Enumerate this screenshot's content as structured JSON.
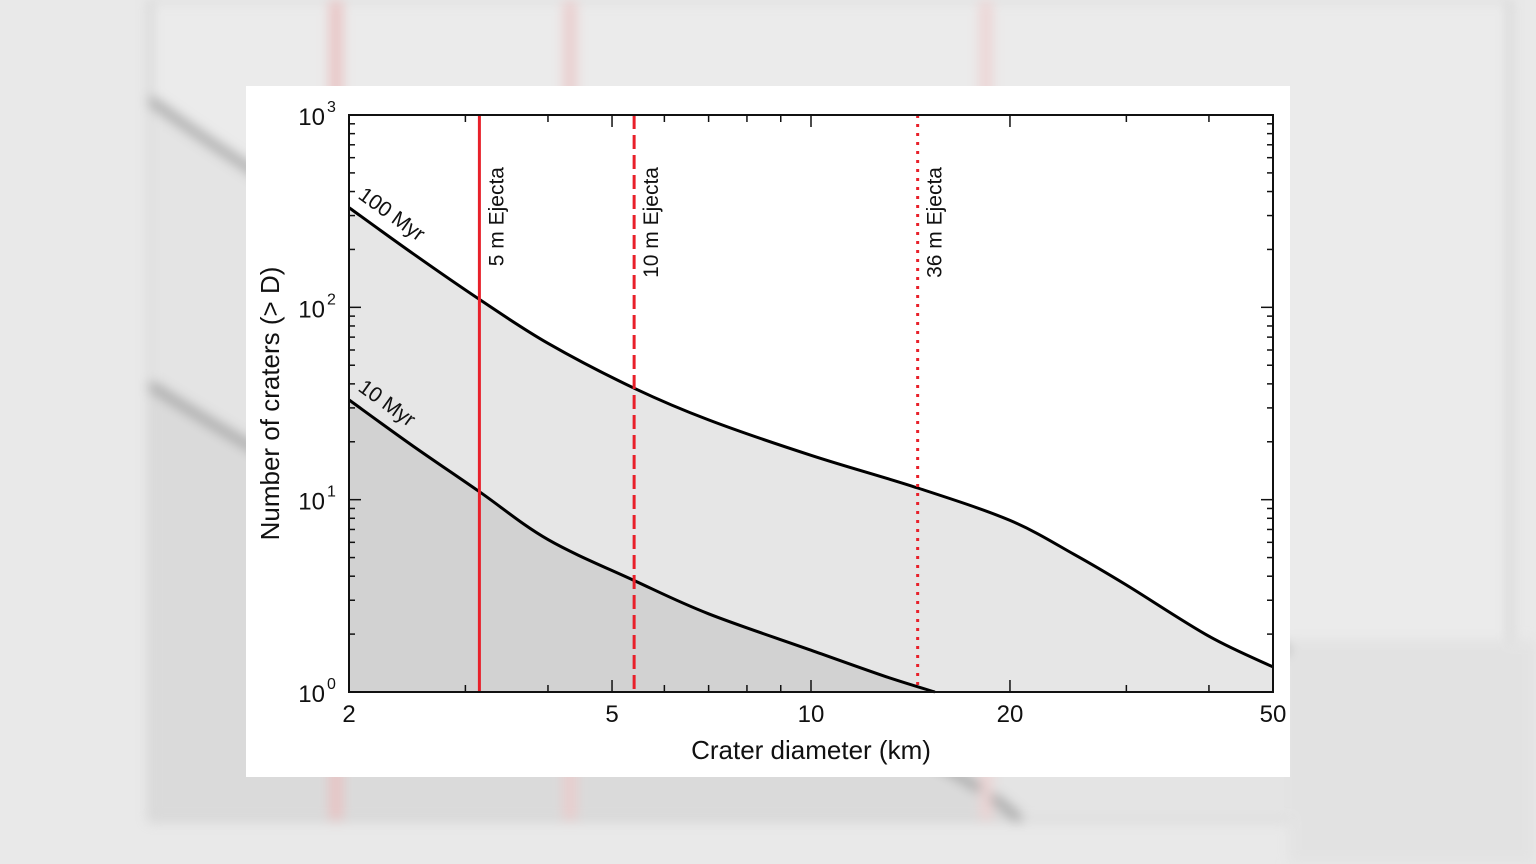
{
  "chart_data": {
    "type": "area",
    "xlabel": "Crater diameter (km)",
    "ylabel": "Number of craters (> D)",
    "xscale": "log",
    "yscale": "log",
    "xlim": [
      2,
      50
    ],
    "ylim": [
      1,
      1000
    ],
    "xticks": [
      2,
      5,
      10,
      20,
      50
    ],
    "xtick_labels": [
      "2",
      "5",
      "10",
      "20",
      "50"
    ],
    "yticks": [
      1,
      10,
      100,
      1000
    ],
    "ytick_labels": [
      {
        "base": "10",
        "exp": "0"
      },
      {
        "base": "10",
        "exp": "1"
      },
      {
        "base": "10",
        "exp": "2"
      },
      {
        "base": "10",
        "exp": "3"
      }
    ],
    "series": [
      {
        "name": "100 Myr",
        "color": "#000000",
        "fill": "#e6e6e6",
        "points": [
          [
            2,
            330
          ],
          [
            2.5,
            190
          ],
          [
            3.15,
            110
          ],
          [
            4,
            65
          ],
          [
            5.4,
            38
          ],
          [
            7,
            26
          ],
          [
            10,
            17
          ],
          [
            14.5,
            11.5
          ],
          [
            20,
            7.8
          ],
          [
            25,
            5.2
          ],
          [
            30,
            3.6
          ],
          [
            40,
            1.95
          ],
          [
            50,
            1.35
          ]
        ]
      },
      {
        "name": "10 Myr",
        "color": "#000000",
        "fill": "#d2d2d2",
        "points": [
          [
            2,
            33
          ],
          [
            2.5,
            19
          ],
          [
            3.15,
            11
          ],
          [
            4,
            6.2
          ],
          [
            5.4,
            3.8
          ],
          [
            7,
            2.55
          ],
          [
            10,
            1.65
          ],
          [
            13,
            1.2
          ],
          [
            15.4,
            0.95
          ]
        ]
      }
    ],
    "vlines": [
      {
        "x": 3.15,
        "label": "5 m Ejecta",
        "style": "solid",
        "color": "#e8202a"
      },
      {
        "x": 5.4,
        "label": "10 m Ejecta",
        "style": "dashed",
        "color": "#e8202a"
      },
      {
        "x": 14.5,
        "label": "36 m Ejecta",
        "style": "dotted",
        "color": "#e8202a"
      }
    ],
    "grid": false,
    "legend": "none"
  }
}
